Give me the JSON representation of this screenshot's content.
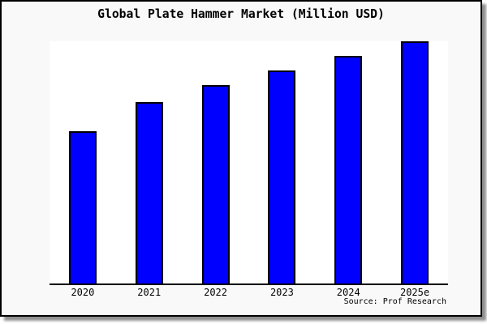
{
  "chart_data": {
    "type": "bar",
    "title": "Global Plate Hammer Market (Million USD)",
    "categories": [
      "2020",
      "2021",
      "2022",
      "2023",
      "2024",
      "2025e"
    ],
    "values": [
      0.63,
      0.75,
      0.82,
      0.88,
      0.94,
      1.0
    ],
    "values_unit": "relative bar height (no numeric y-axis shown)",
    "xlabel": "",
    "ylabel": "",
    "ylim": [
      0,
      1
    ],
    "y_axis_visible": false,
    "gridlines": false,
    "legend": false,
    "bar_color": "#0000ff",
    "bar_border_color": "#000000",
    "source_note": "Source: Prof Research"
  },
  "colors": {
    "card_background": "#f9f9f9",
    "plot_background": "#ffffff",
    "border": "#000000",
    "shadow": "#8f8f8f",
    "text": "#000000"
  }
}
